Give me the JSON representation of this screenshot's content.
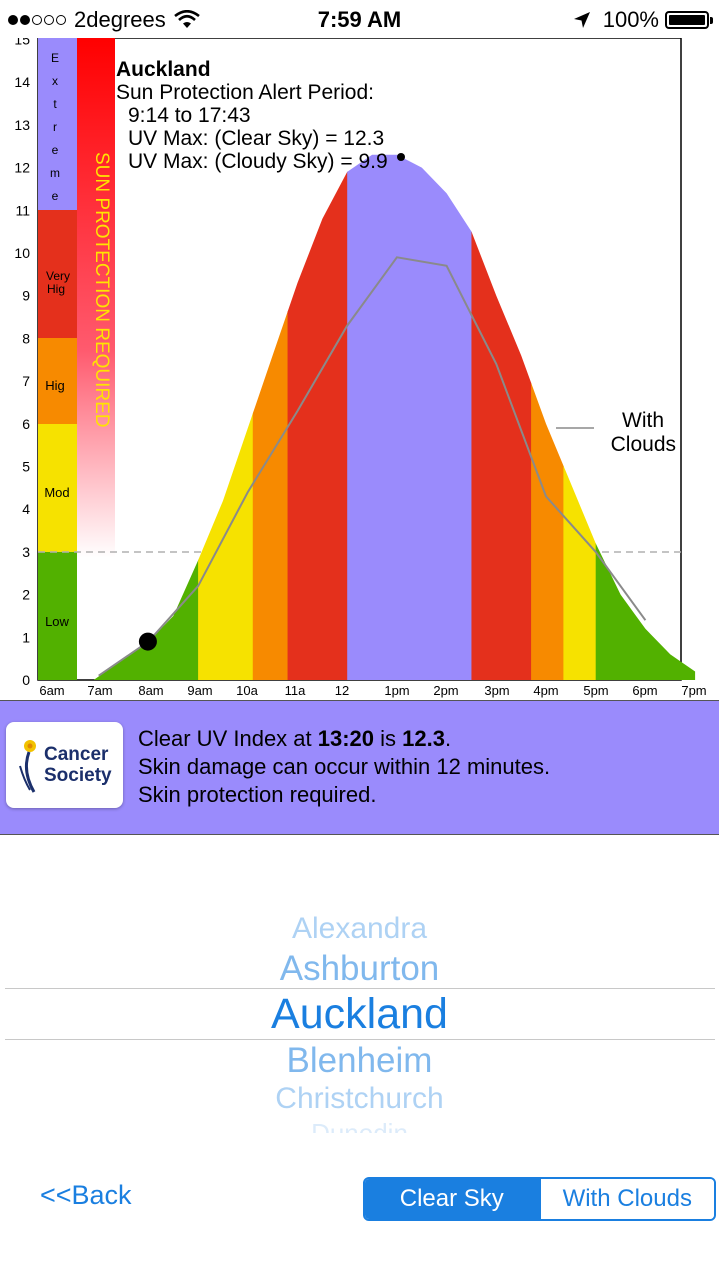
{
  "status_bar": {
    "carrier": "2degrees",
    "time": "7:59 AM",
    "battery": "100%"
  },
  "chart": {
    "title": "Auckland",
    "alert_label": "Sun Protection Alert Period:",
    "alert_period": "9:14 to 17:43",
    "uv_max_clear": "UV Max: (Clear Sky) = 12.3",
    "uv_max_cloudy": "UV Max: (Cloudy Sky) = 9.9",
    "sun_protection_banner": "SUN PROTECTION REQUIRED",
    "with_clouds_line1": "With",
    "with_clouds_line2": "Clouds",
    "y_ticks": [
      "0",
      "1",
      "2",
      "3",
      "4",
      "5",
      "6",
      "7",
      "8",
      "9",
      "10",
      "11",
      "12",
      "13",
      "14",
      "15"
    ],
    "x_ticks": [
      "6am",
      "7am",
      "8am",
      "9am",
      "10a",
      "11a",
      "12",
      "1pm",
      "2pm",
      "3pm",
      "4pm",
      "5pm",
      "6pm",
      "7pm"
    ],
    "levels": [
      "Low",
      "Mod",
      "Hig",
      "Very Hig",
      "Extreme"
    ],
    "level_colors": {
      "low": "#52b100",
      "moderate": "#f6e200",
      "high": "#f78a00",
      "very_high": "#e4301c",
      "extreme": "#9a8bfc"
    }
  },
  "chart_data": {
    "type": "area",
    "title": "Auckland",
    "x_unit": "hour of day",
    "ylim": [
      0,
      15
    ],
    "series": [
      {
        "name": "Clear Sky",
        "x": [
          6.9,
          7.5,
          8,
          8.5,
          9,
          9.5,
          10,
          10.5,
          11,
          11.5,
          12,
          12.5,
          13,
          13.5,
          14,
          14.5,
          15,
          15.5,
          16,
          16.5,
          17,
          17.5,
          18,
          18.5,
          19
        ],
        "values": [
          0.0,
          0.5,
          0.9,
          1.5,
          2.8,
          4.2,
          5.9,
          7.6,
          9.3,
          10.8,
          11.9,
          12.3,
          12.3,
          12.0,
          11.4,
          10.5,
          9.0,
          7.6,
          6.0,
          4.6,
          3.2,
          2.0,
          1.2,
          0.6,
          0.2
        ]
      },
      {
        "name": "With Clouds",
        "x": [
          7,
          8,
          9,
          10,
          11,
          12,
          13,
          14,
          15,
          16,
          17,
          18
        ],
        "values": [
          0.1,
          0.9,
          2.2,
          4.4,
          6.3,
          8.3,
          9.9,
          9.7,
          7.4,
          4.3,
          3.0,
          1.4
        ]
      }
    ],
    "marker": {
      "x": 7.99,
      "y": 0.9
    },
    "threshold": 3
  },
  "info": {
    "clear_prefix": "Clear UV Index at ",
    "time_value": "13:20",
    "is_text": " is ",
    "uv_value": "12.3",
    "period": ".",
    "line2": "Skin damage can occur within 12 minutes.",
    "line3": "Skin protection required.",
    "logo_line1": "Cancer",
    "logo_line2": "Society"
  },
  "picker": {
    "items": [
      "Alexandra",
      "Ashburton",
      "Auckland",
      "Blenheim",
      "Christchurch",
      "Dunedin"
    ],
    "selected": "Auckland"
  },
  "footer": {
    "back_label": "<<Back",
    "segment_active": "Clear Sky",
    "segment_inactive": "With Clouds"
  }
}
